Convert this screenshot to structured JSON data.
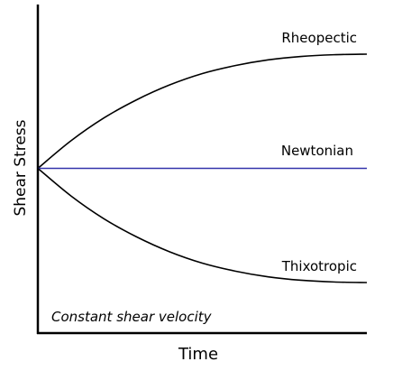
{
  "chart_data": {
    "type": "line",
    "title": "",
    "xlabel": "Time",
    "ylabel": "Shear Stress",
    "annotation": "Constant shear velocity",
    "grid": false,
    "legend": "none",
    "xlim": [
      0,
      1
    ],
    "ylim": [
      -1,
      1
    ],
    "x": [
      0,
      0.1,
      0.2,
      0.3,
      0.4,
      0.5,
      0.6,
      0.7,
      0.8,
      0.9,
      1.0
    ],
    "series": [
      {
        "name": "Rheopectic",
        "color": "#000000",
        "values": [
          0,
          0.24,
          0.44,
          0.6,
          0.73,
          0.83,
          0.9,
          0.95,
          0.98,
          0.995,
          1.0
        ]
      },
      {
        "name": "Newtonian",
        "color": "#3333aa",
        "values": [
          0,
          0,
          0,
          0,
          0,
          0,
          0,
          0,
          0,
          0,
          0
        ]
      },
      {
        "name": "Thixotropic",
        "color": "#000000",
        "values": [
          0,
          -0.24,
          -0.44,
          -0.6,
          -0.73,
          -0.83,
          -0.9,
          -0.95,
          -0.98,
          -0.995,
          -1.0
        ]
      }
    ]
  }
}
